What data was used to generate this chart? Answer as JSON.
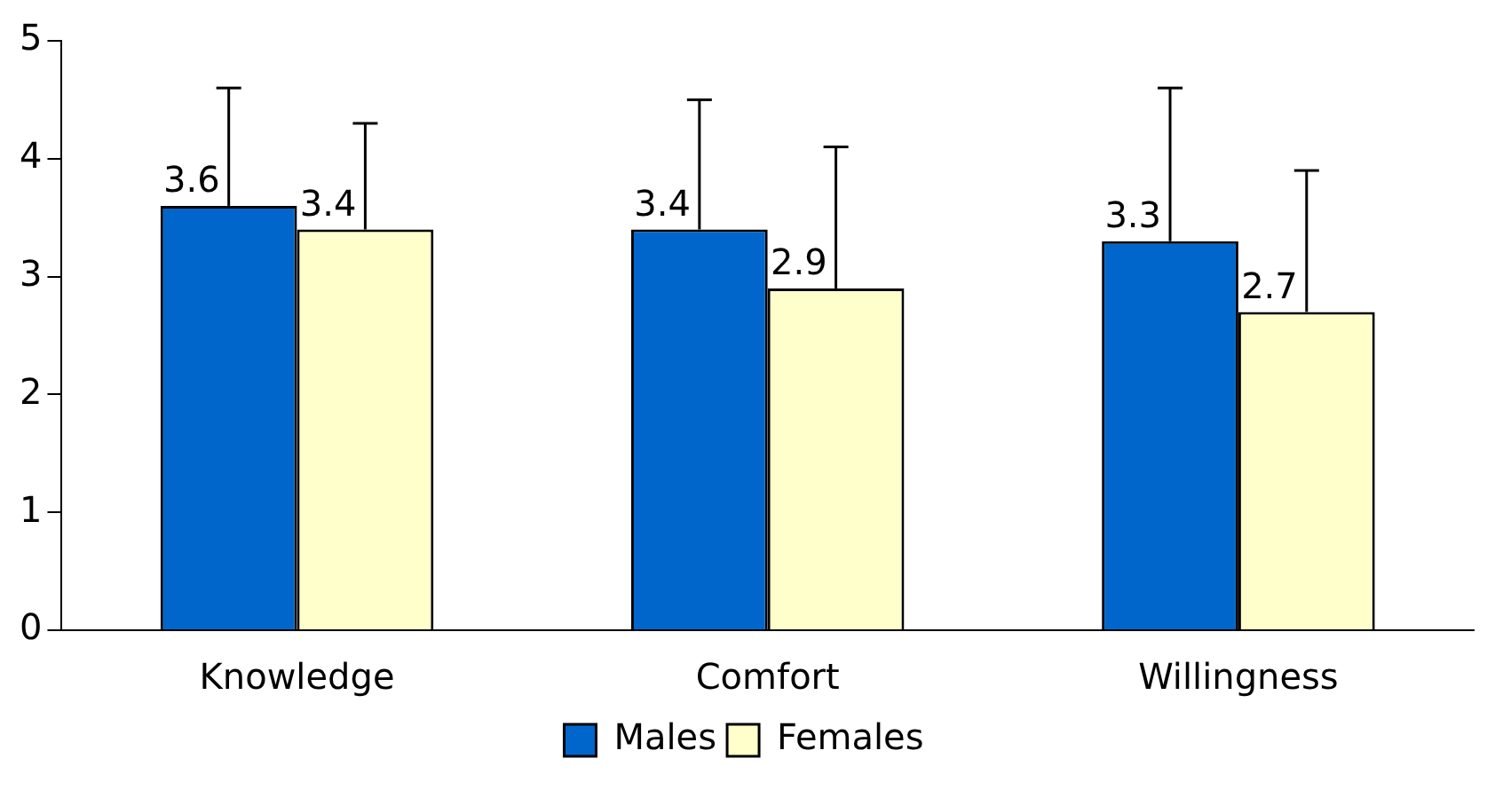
{
  "chart_data": {
    "type": "bar",
    "categories": [
      "Knowledge",
      "Comfort",
      "Willingness"
    ],
    "series": [
      {
        "name": "Males",
        "color": "#0066cc",
        "values": [
          3.6,
          3.4,
          3.3
        ],
        "value_labels": [
          "3.6",
          "3.4",
          "3.3"
        ],
        "errors": [
          [
            3.6,
            4.6
          ],
          [
            3.4,
            4.5
          ],
          [
            3.3,
            4.6
          ]
        ]
      },
      {
        "name": "Females",
        "color": "#ffffcc",
        "values": [
          3.4,
          2.9,
          2.7
        ],
        "value_labels": [
          "3.4",
          "2.9",
          "2.7"
        ],
        "errors": [
          [
            3.4,
            4.3
          ],
          [
            2.9,
            4.1
          ],
          [
            2.7,
            3.9
          ]
        ]
      }
    ],
    "ylim": [
      0,
      5
    ],
    "yticks": [
      0,
      1,
      2,
      3,
      4,
      5
    ],
    "grid": false,
    "legend": "bottom"
  }
}
